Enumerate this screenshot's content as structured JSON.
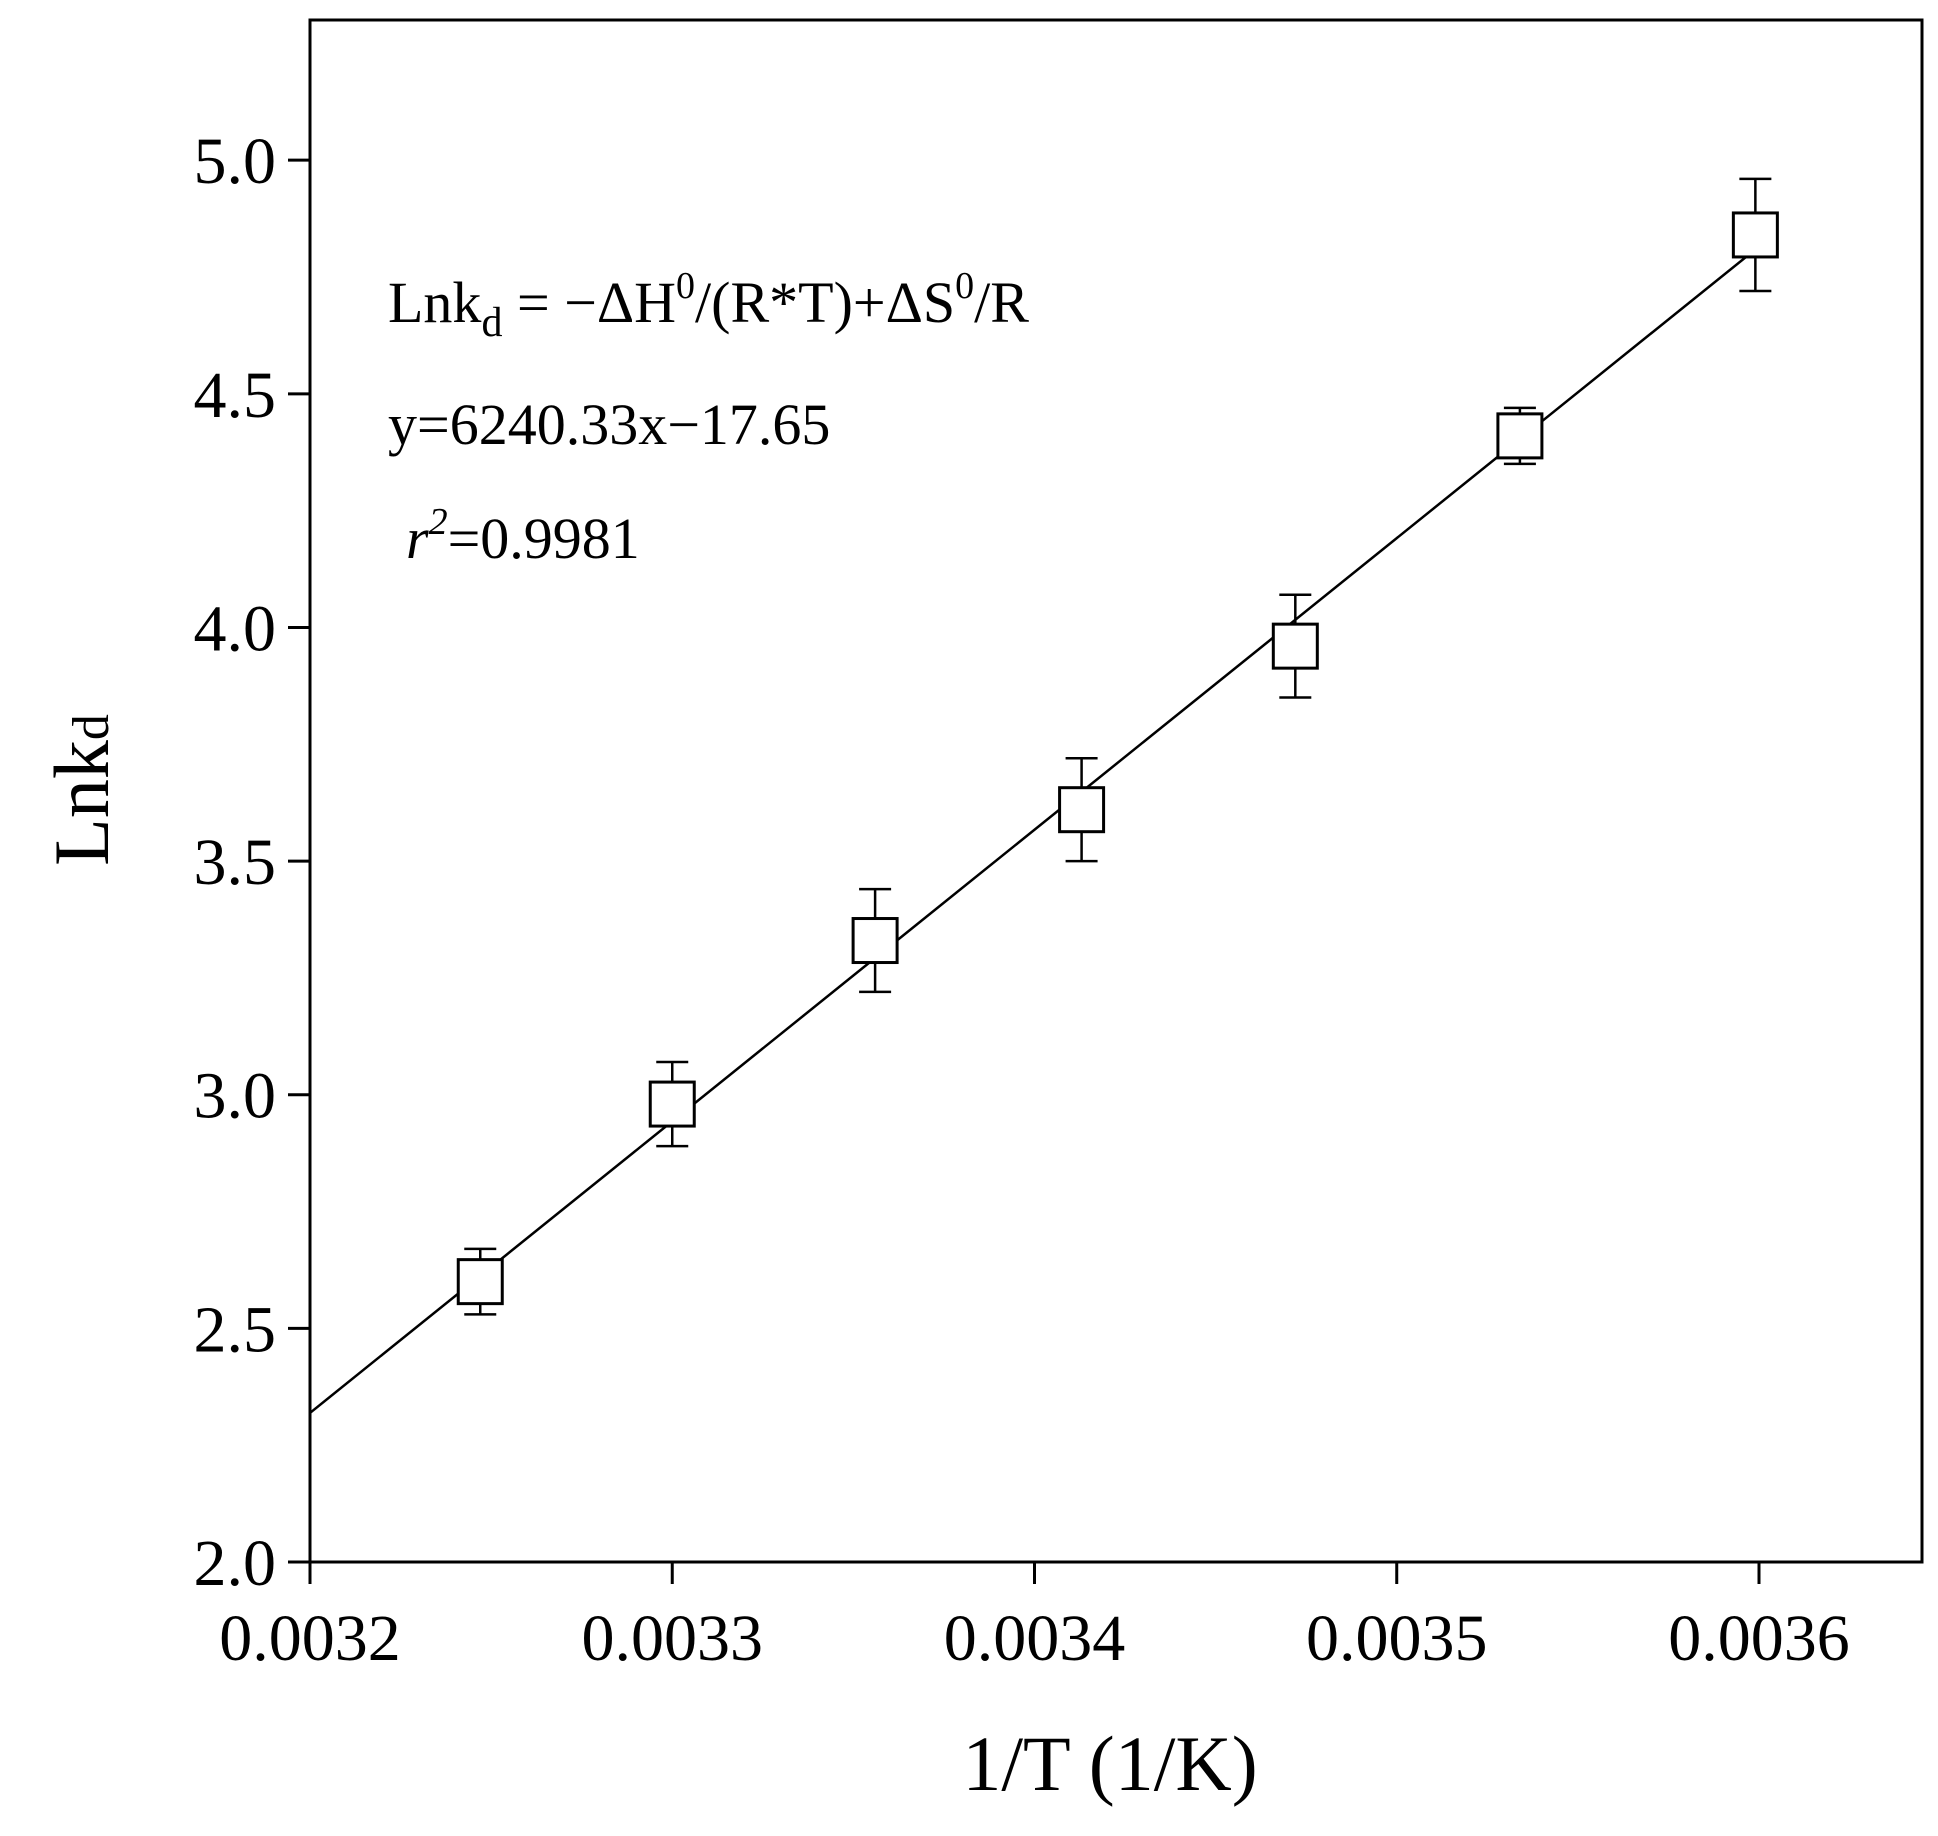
{
  "chart_data": {
    "type": "scatter",
    "xlabel": "1/T (1/K)",
    "ylabel": "Lnk",
    "ylabel_subscript": "d",
    "xlim": [
      0.0032,
      0.003645
    ],
    "ylim": [
      2.0,
      5.3
    ],
    "xticks": [
      0.0032,
      0.0033,
      0.0034,
      0.0035,
      0.0036
    ],
    "xtick_labels": [
      "0.0032",
      "0.0033",
      "0.0034",
      "0.0035",
      "0.0036"
    ],
    "yticks": [
      2.0,
      2.5,
      3.0,
      3.5,
      4.0,
      4.5,
      5.0
    ],
    "ytick_labels": [
      "2.0",
      "2.5",
      "3.0",
      "3.5",
      "4.0",
      "4.5",
      "5.0"
    ],
    "grid": false,
    "series": [
      {
        "marker": "open-square",
        "x": [
          0.003247,
          0.0033,
          0.003356,
          0.003413,
          0.003472,
          0.003534,
          0.003599
        ],
        "y": [
          2.6,
          2.98,
          3.33,
          3.61,
          3.96,
          4.41,
          4.84
        ],
        "err": [
          0.07,
          0.09,
          0.11,
          0.11,
          0.11,
          0.06,
          0.12
        ]
      }
    ],
    "fit": {
      "slope": 6240.33,
      "intercept": -17.65,
      "x_range": [
        0.0032,
        0.003599
      ]
    },
    "annotations": {
      "equation": {
        "lhs": "Lnk",
        "lhs_sub": "d",
        "part1": " = −ΔH",
        "sup1": "0",
        "part2": "/(R*T)+ΔS",
        "sup2": "0",
        "part3": "/R"
      },
      "fit_line": "y=6240.33x−17.65",
      "r2": {
        "symbol": "r",
        "sup": "2",
        "value": "=0.9981"
      }
    }
  }
}
